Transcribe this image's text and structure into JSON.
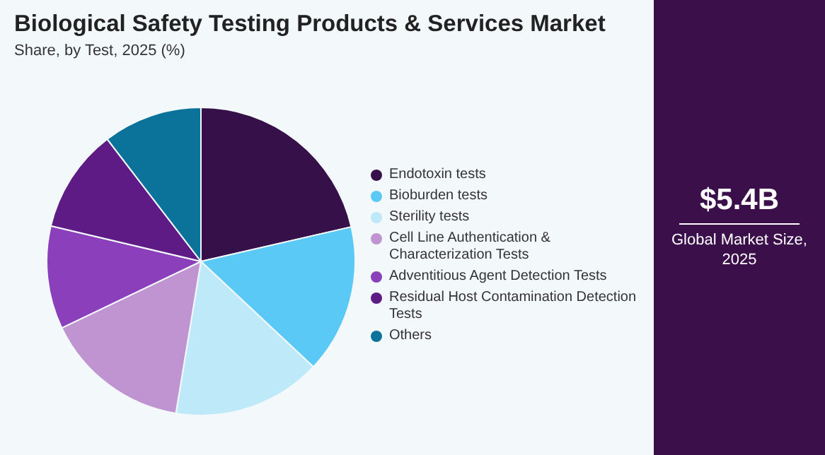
{
  "chart_data": {
    "type": "pie",
    "title": "Biological Safety Testing Products & Services Market",
    "subtitle": "Share, by Test, 2025 (%)",
    "categories": [
      "Endotoxin tests",
      "Bioburden tests",
      "Sterility tests",
      "Cell Line Authentication & Characterization Tests",
      "Adventitious Agent Detection Tests",
      "Residual Host Contamination Detection Tests",
      "Others"
    ],
    "values": [
      21.4,
      15.6,
      15.6,
      15.3,
      10.8,
      10.9,
      10.4
    ],
    "colors": [
      "#361048",
      "#5bc9f5",
      "#bde9f9",
      "#bf94d0",
      "#8b3fbb",
      "#5e1a85",
      "#0b7299"
    ],
    "legend": "right",
    "annotations": [
      "$5.4B",
      "Global Market Size, 2025"
    ]
  }
}
